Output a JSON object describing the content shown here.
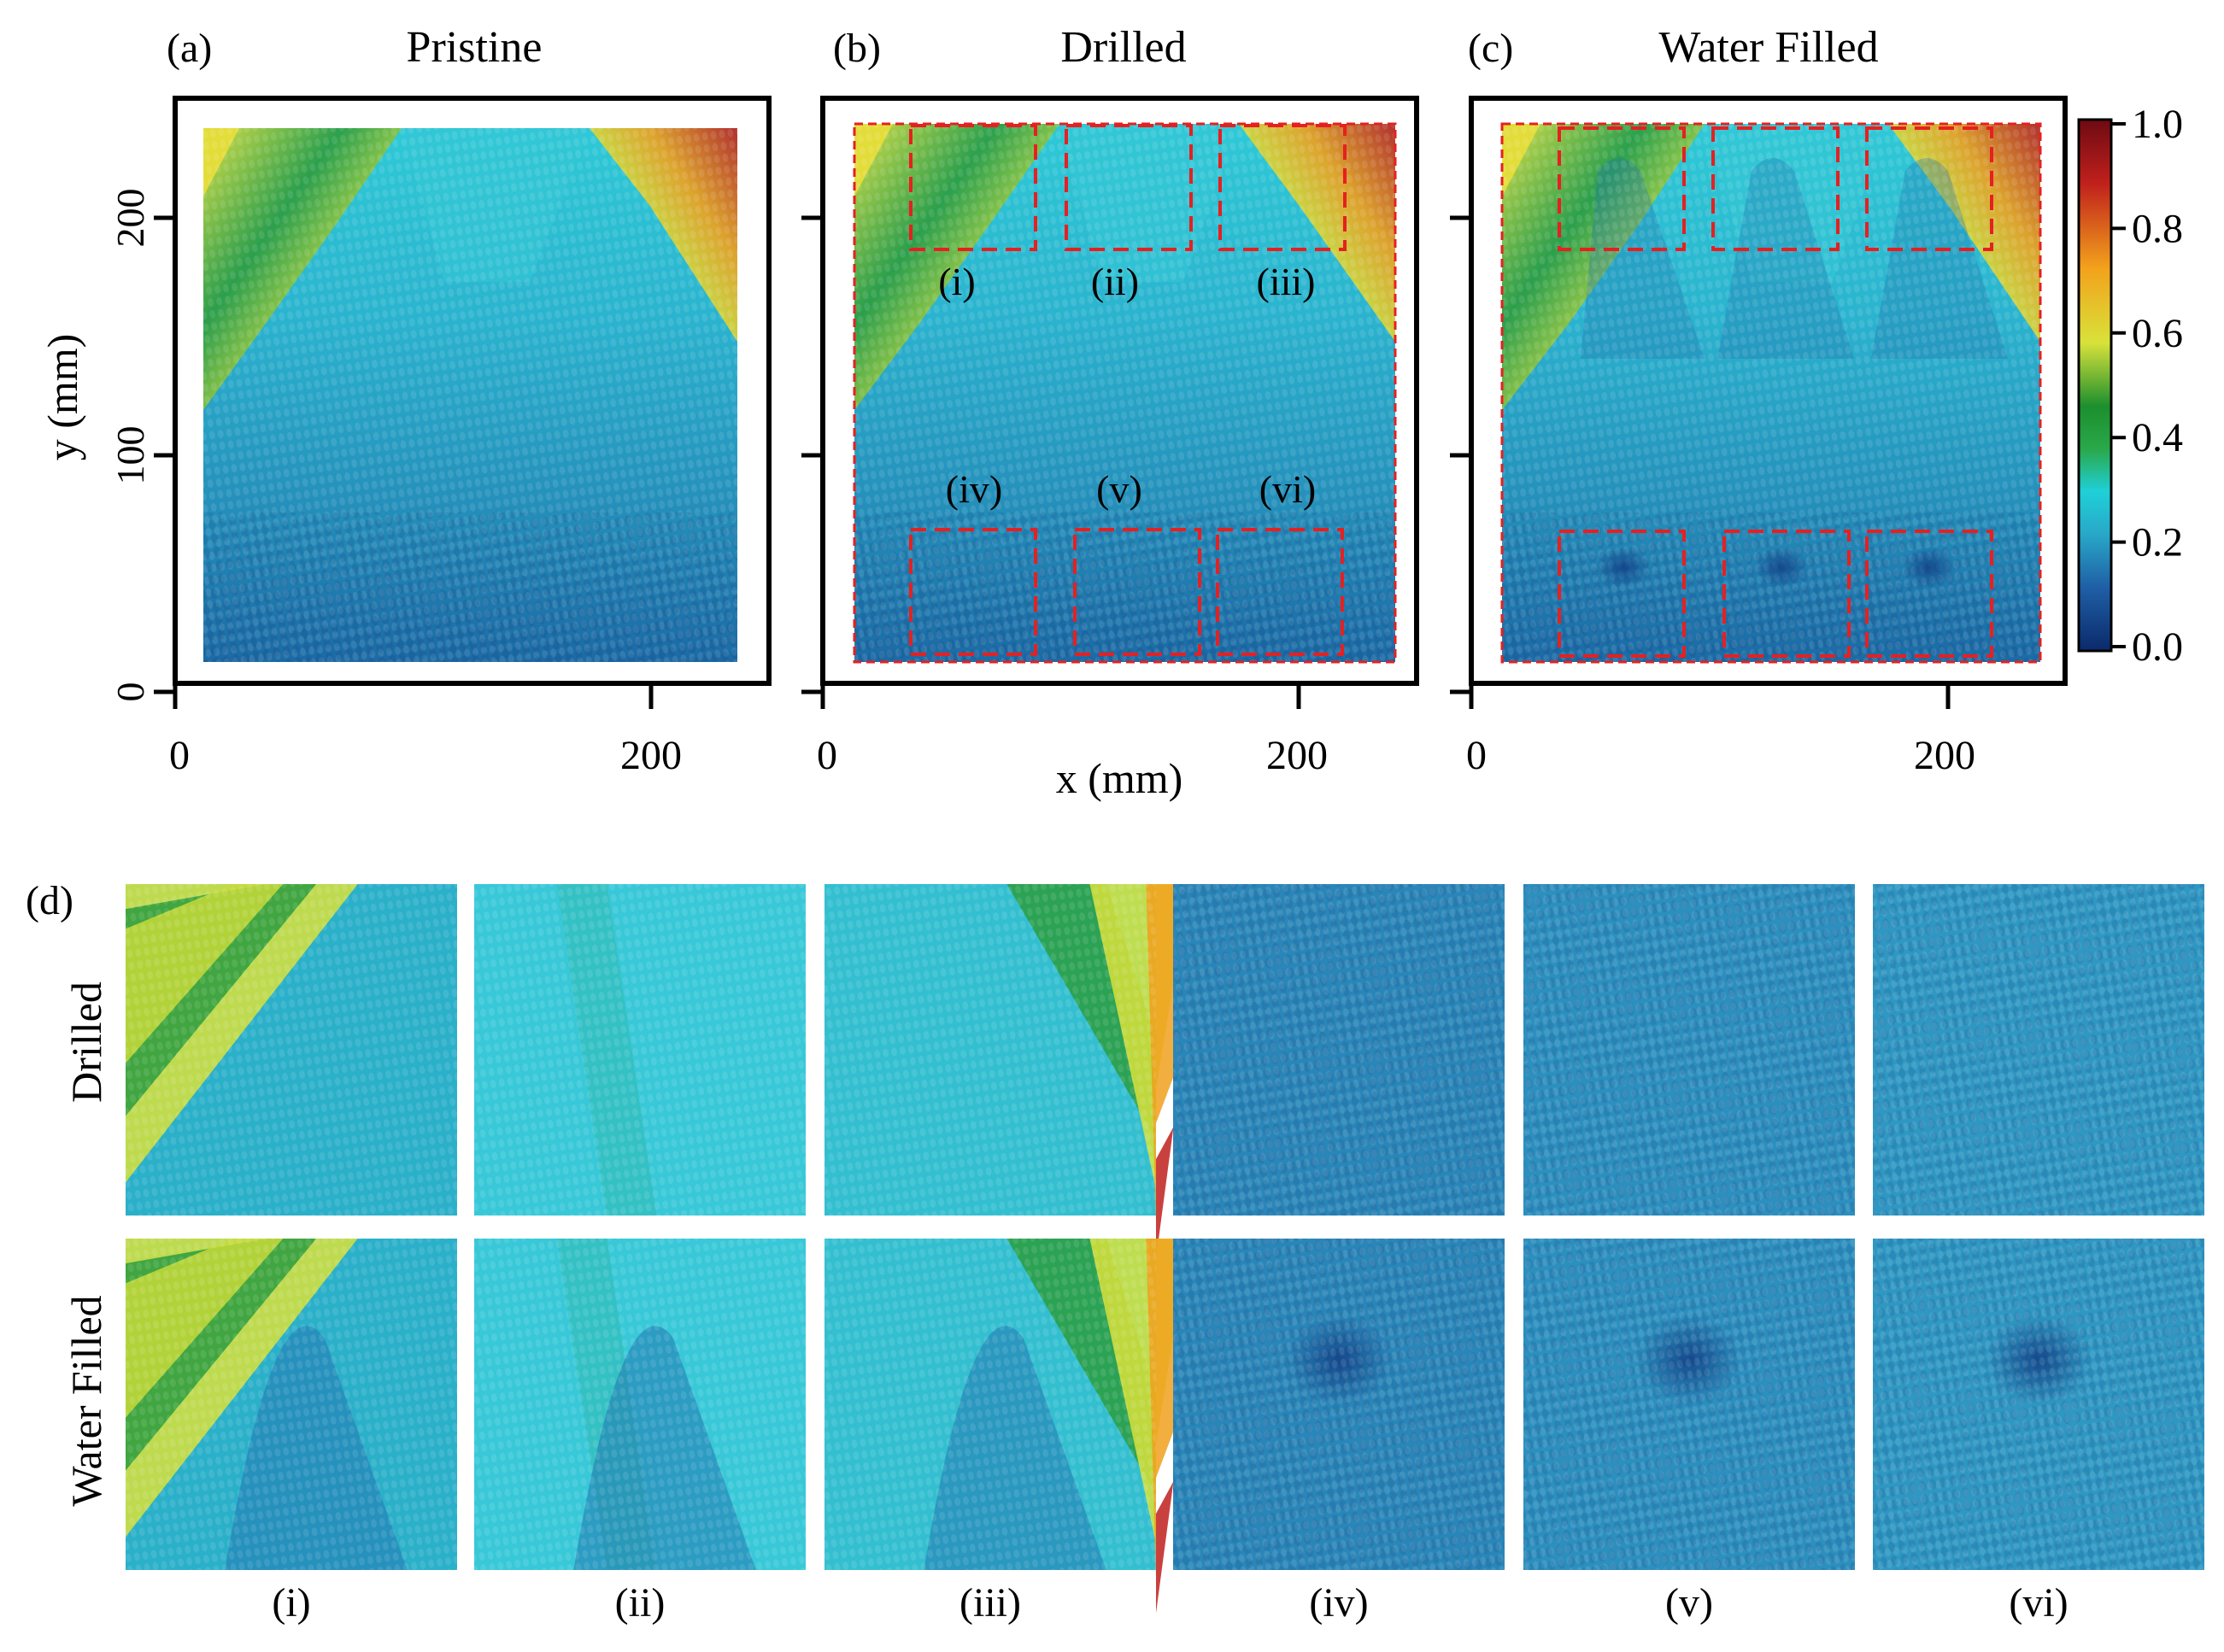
{
  "figure": {
    "panels": [
      {
        "id": "a",
        "tag": "(a)",
        "title": "Pristine"
      },
      {
        "id": "b",
        "tag": "(b)",
        "title": "Drilled"
      },
      {
        "id": "c",
        "tag": "(c)",
        "title": "Water Filled"
      }
    ],
    "y_axis_label": "y (mm)",
    "x_axis_label": "x (mm)",
    "y_ticks": [
      "0",
      "100",
      "200"
    ],
    "x_ticks": [
      "0",
      "200"
    ],
    "regions": [
      "(i)",
      "(ii)",
      "(iii)",
      "(iv)",
      "(v)",
      "(vi)"
    ],
    "panel_d": {
      "tag": "(d)",
      "rows": [
        "Drilled",
        "Water Filled"
      ],
      "columns": [
        "(i)",
        "(ii)",
        "(iii)",
        "(iv)",
        "(v)",
        "(vi)"
      ]
    },
    "colorbar": {
      "ticks": [
        "1.0",
        "0.8",
        "0.6",
        "0.4",
        "0.2",
        "0.0"
      ],
      "colors": [
        "#0b2a6b",
        "#1f5fa6",
        "#28a8c8",
        "#1fd0d8",
        "#2aa84a",
        "#1c8f2e",
        "#d8e23a",
        "#f3a21c",
        "#c0201c",
        "#6e0a12"
      ]
    },
    "highlight_color": "#e62020"
  },
  "chart_data": {
    "type": "heatmap",
    "value_range": [
      0.0,
      1.0
    ],
    "colorbar_ticks": [
      0.0,
      0.2,
      0.4,
      0.6,
      0.8,
      1.0
    ],
    "x_axis_ticks_mm": [
      0,
      200
    ],
    "y_axis_ticks_mm": [
      0,
      100,
      200
    ],
    "panels": [
      "Pristine",
      "Drilled",
      "Water Filled"
    ]
  }
}
